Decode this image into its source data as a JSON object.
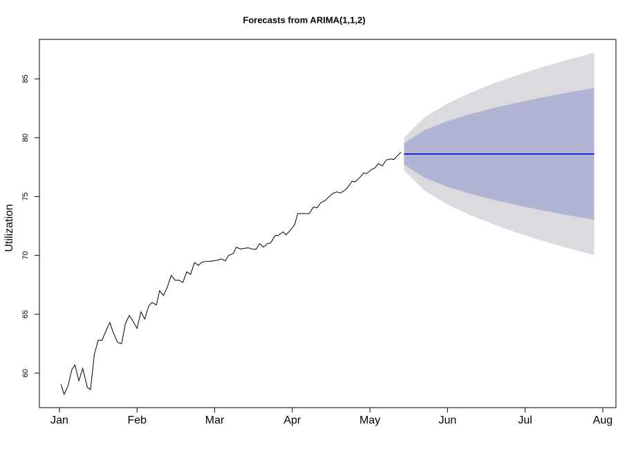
{
  "chart_data": {
    "type": "line",
    "title": "Forecasts from ARIMA(1,1,2)",
    "ylabel": "Utilization",
    "xlim": [
      0.742,
      8.17
    ],
    "ylim": [
      57.07,
      88.35
    ],
    "yticks": [
      60,
      65,
      70,
      75,
      80,
      85
    ],
    "xticks": [
      {
        "value": 1,
        "label": "Jan"
      },
      {
        "value": 2,
        "label": "Feb"
      },
      {
        "value": 3,
        "label": "Mar"
      },
      {
        "value": 4,
        "label": "Apr"
      },
      {
        "value": 5,
        "label": "May"
      },
      {
        "value": 6,
        "label": "Jun"
      },
      {
        "value": 7,
        "label": "Jul"
      },
      {
        "value": 8,
        "label": "Aug"
      }
    ],
    "x": [
      1.02,
      1.06,
      1.11,
      1.16,
      1.2,
      1.25,
      1.3,
      1.36,
      1.4,
      1.45,
      1.5,
      1.55,
      1.6,
      1.65,
      1.69,
      1.75,
      1.8,
      1.85,
      1.9,
      1.94,
      2.0,
      2.05,
      2.1,
      2.15,
      2.19,
      2.25,
      2.29,
      2.34,
      2.39,
      2.44,
      2.49,
      2.54,
      2.59,
      2.64,
      2.69,
      2.74,
      2.79,
      2.83,
      2.89,
      2.94,
      2.99,
      3.04,
      3.08,
      3.14,
      3.18,
      3.24,
      3.28,
      3.33,
      3.38,
      3.43,
      3.48,
      3.53,
      3.58,
      3.63,
      3.68,
      3.72,
      3.78,
      3.82,
      3.88,
      3.92,
      3.97,
      4.03,
      4.07,
      4.13,
      4.17,
      4.22,
      4.27,
      4.32,
      4.37,
      4.42,
      4.46,
      4.52,
      4.57,
      4.62,
      4.67,
      4.71,
      4.77,
      4.81,
      4.86,
      4.92,
      4.96,
      5.02,
      5.06,
      5.11,
      5.16,
      5.21,
      5.26,
      5.31,
      5.35,
      5.4
    ],
    "series": [
      {
        "color": "#000000",
        "values": [
          59.06,
          58.2,
          58.9,
          60.3,
          60.7,
          59.35,
          60.4,
          58.8,
          58.6,
          61.6,
          62.8,
          62.8,
          63.6,
          64.3,
          63.5,
          62.6,
          62.5,
          64.2,
          64.9,
          64.5,
          63.8,
          65.2,
          64.6,
          65.7,
          66.0,
          65.8,
          67.0,
          66.6,
          67.3,
          68.3,
          67.9,
          67.9,
          67.7,
          68.6,
          68.4,
          69.4,
          69.15,
          69.4,
          69.5,
          69.5,
          69.55,
          69.6,
          69.7,
          69.55,
          70.0,
          70.15,
          70.7,
          70.55,
          70.6,
          70.65,
          70.55,
          70.5,
          71.0,
          70.7,
          71.0,
          71.05,
          71.7,
          71.7,
          72.0,
          71.75,
          72.1,
          72.6,
          73.55,
          73.55,
          73.55,
          73.55,
          74.1,
          74.05,
          74.5,
          74.65,
          74.9,
          75.25,
          75.4,
          75.3,
          75.5,
          75.75,
          76.3,
          76.25,
          76.55,
          77.0,
          76.95,
          77.3,
          77.4,
          77.8,
          77.6,
          78.1,
          78.2,
          78.15,
          78.45,
          78.75
        ]
      }
    ],
    "forecast": {
      "x": [
        5.44,
        5.7,
        6.0,
        6.3,
        6.6,
        6.9,
        7.2,
        7.5,
        7.89
      ],
      "mean": [
        78.62,
        78.62,
        78.62,
        78.62,
        78.62,
        78.62,
        78.62,
        78.62,
        78.62
      ],
      "hi80": [
        79.52,
        80.63,
        81.41,
        82.02,
        82.53,
        82.98,
        83.39,
        83.77,
        84.22
      ],
      "lo80": [
        77.72,
        76.61,
        75.83,
        75.22,
        74.71,
        74.26,
        73.85,
        73.47,
        73.02
      ],
      "hi95": [
        80.02,
        81.72,
        82.91,
        83.84,
        84.62,
        85.32,
        85.95,
        86.53,
        87.22
      ],
      "lo95": [
        77.22,
        75.52,
        74.33,
        73.4,
        72.62,
        71.92,
        71.29,
        70.71,
        70.02
      ],
      "color": "#0000cc",
      "color80": "#b1b5d3",
      "color95": "#dbdbdf"
    }
  }
}
